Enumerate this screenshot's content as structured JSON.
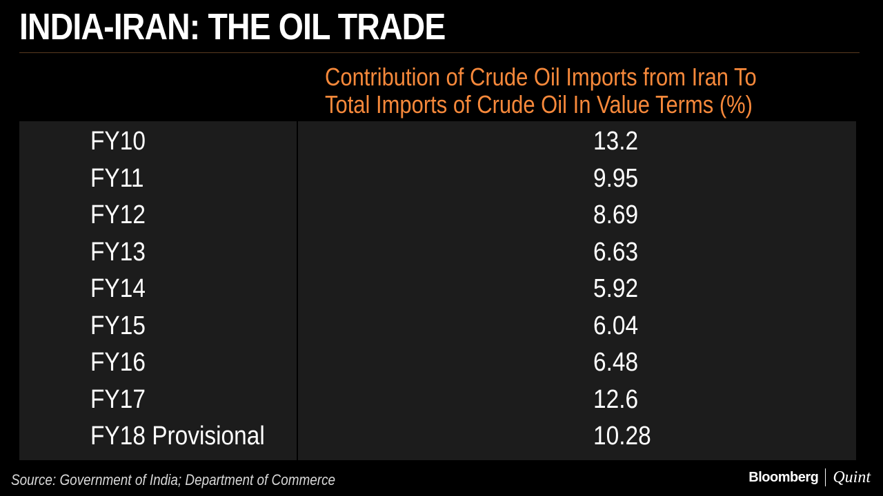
{
  "title": "INDIA-IRAN: THE OIL TRADE",
  "column_header": {
    "line1": "Contribution of Crude Oil Imports from Iran To",
    "line2": "Total Imports of Crude Oil In Value Terms (%)"
  },
  "chart_data": {
    "type": "table",
    "title": "INDIA-IRAN: THE OIL TRADE",
    "columns": [
      "",
      "Contribution of Crude Oil Imports from Iran To Total Imports of Crude Oil In Value Terms (%)"
    ],
    "rows": [
      {
        "label": "FY10",
        "value": "13.2"
      },
      {
        "label": "FY11",
        "value": "9.95"
      },
      {
        "label": "FY12",
        "value": "8.69"
      },
      {
        "label": "FY13",
        "value": "6.63"
      },
      {
        "label": "FY14",
        "value": "5.92"
      },
      {
        "label": "FY15",
        "value": "6.04"
      },
      {
        "label": "FY16",
        "value": "6.48"
      },
      {
        "label": "FY17",
        "value": "12.6"
      },
      {
        "label": "FY18 Provisional",
        "value": "10.28"
      }
    ]
  },
  "source": "Source: Government of India; Department of Commerce",
  "logo": {
    "brand": "Bloomberg",
    "sub": "Quint"
  },
  "colors": {
    "background": "#000000",
    "panel": "#1c1c1c",
    "accent": "#f7893b",
    "text": "#ffffff"
  }
}
